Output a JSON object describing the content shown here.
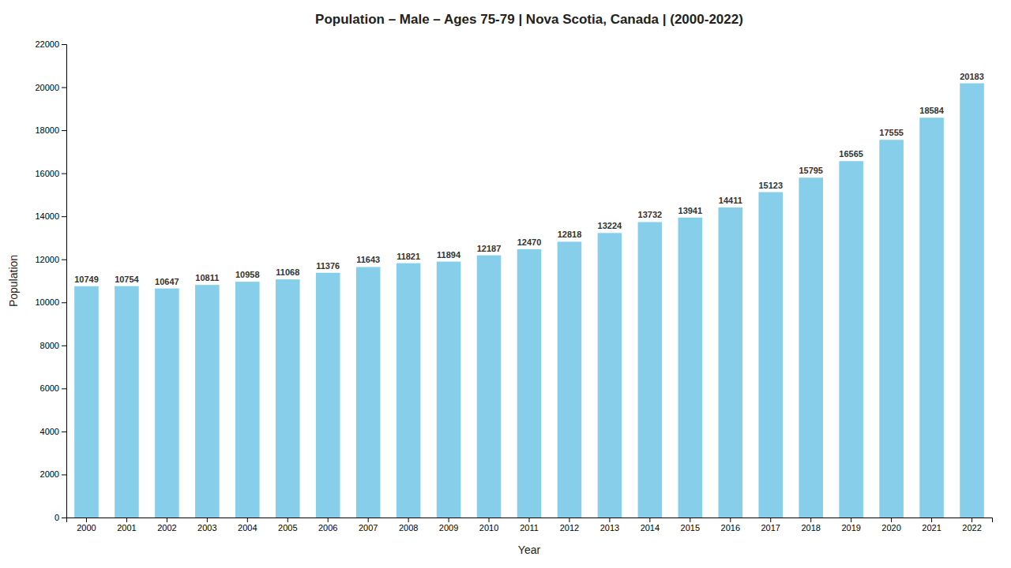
{
  "chart_data": {
    "type": "bar",
    "title": "Population – Male – Ages 75-79 | Nova Scotia, Canada |  (2000-2022)",
    "xlabel": "Year",
    "ylabel": "Population",
    "categories": [
      "2000",
      "2001",
      "2002",
      "2003",
      "2004",
      "2005",
      "2006",
      "2007",
      "2008",
      "2009",
      "2010",
      "2011",
      "2012",
      "2013",
      "2014",
      "2015",
      "2016",
      "2017",
      "2018",
      "2019",
      "2020",
      "2021",
      "2022"
    ],
    "values": [
      10749,
      10754,
      10647,
      10811,
      10958,
      11068,
      11376,
      11643,
      11821,
      11894,
      12187,
      12470,
      12818,
      13224,
      13732,
      13941,
      14411,
      15123,
      15795,
      16565,
      17555,
      18584,
      20183
    ],
    "color": "#87CEEB",
    "ylim": [
      0,
      22000
    ],
    "yticks": [
      0,
      2000,
      4000,
      6000,
      8000,
      10000,
      12000,
      14000,
      16000,
      18000,
      20000,
      22000
    ],
    "grid": false,
    "data_labels": true
  }
}
